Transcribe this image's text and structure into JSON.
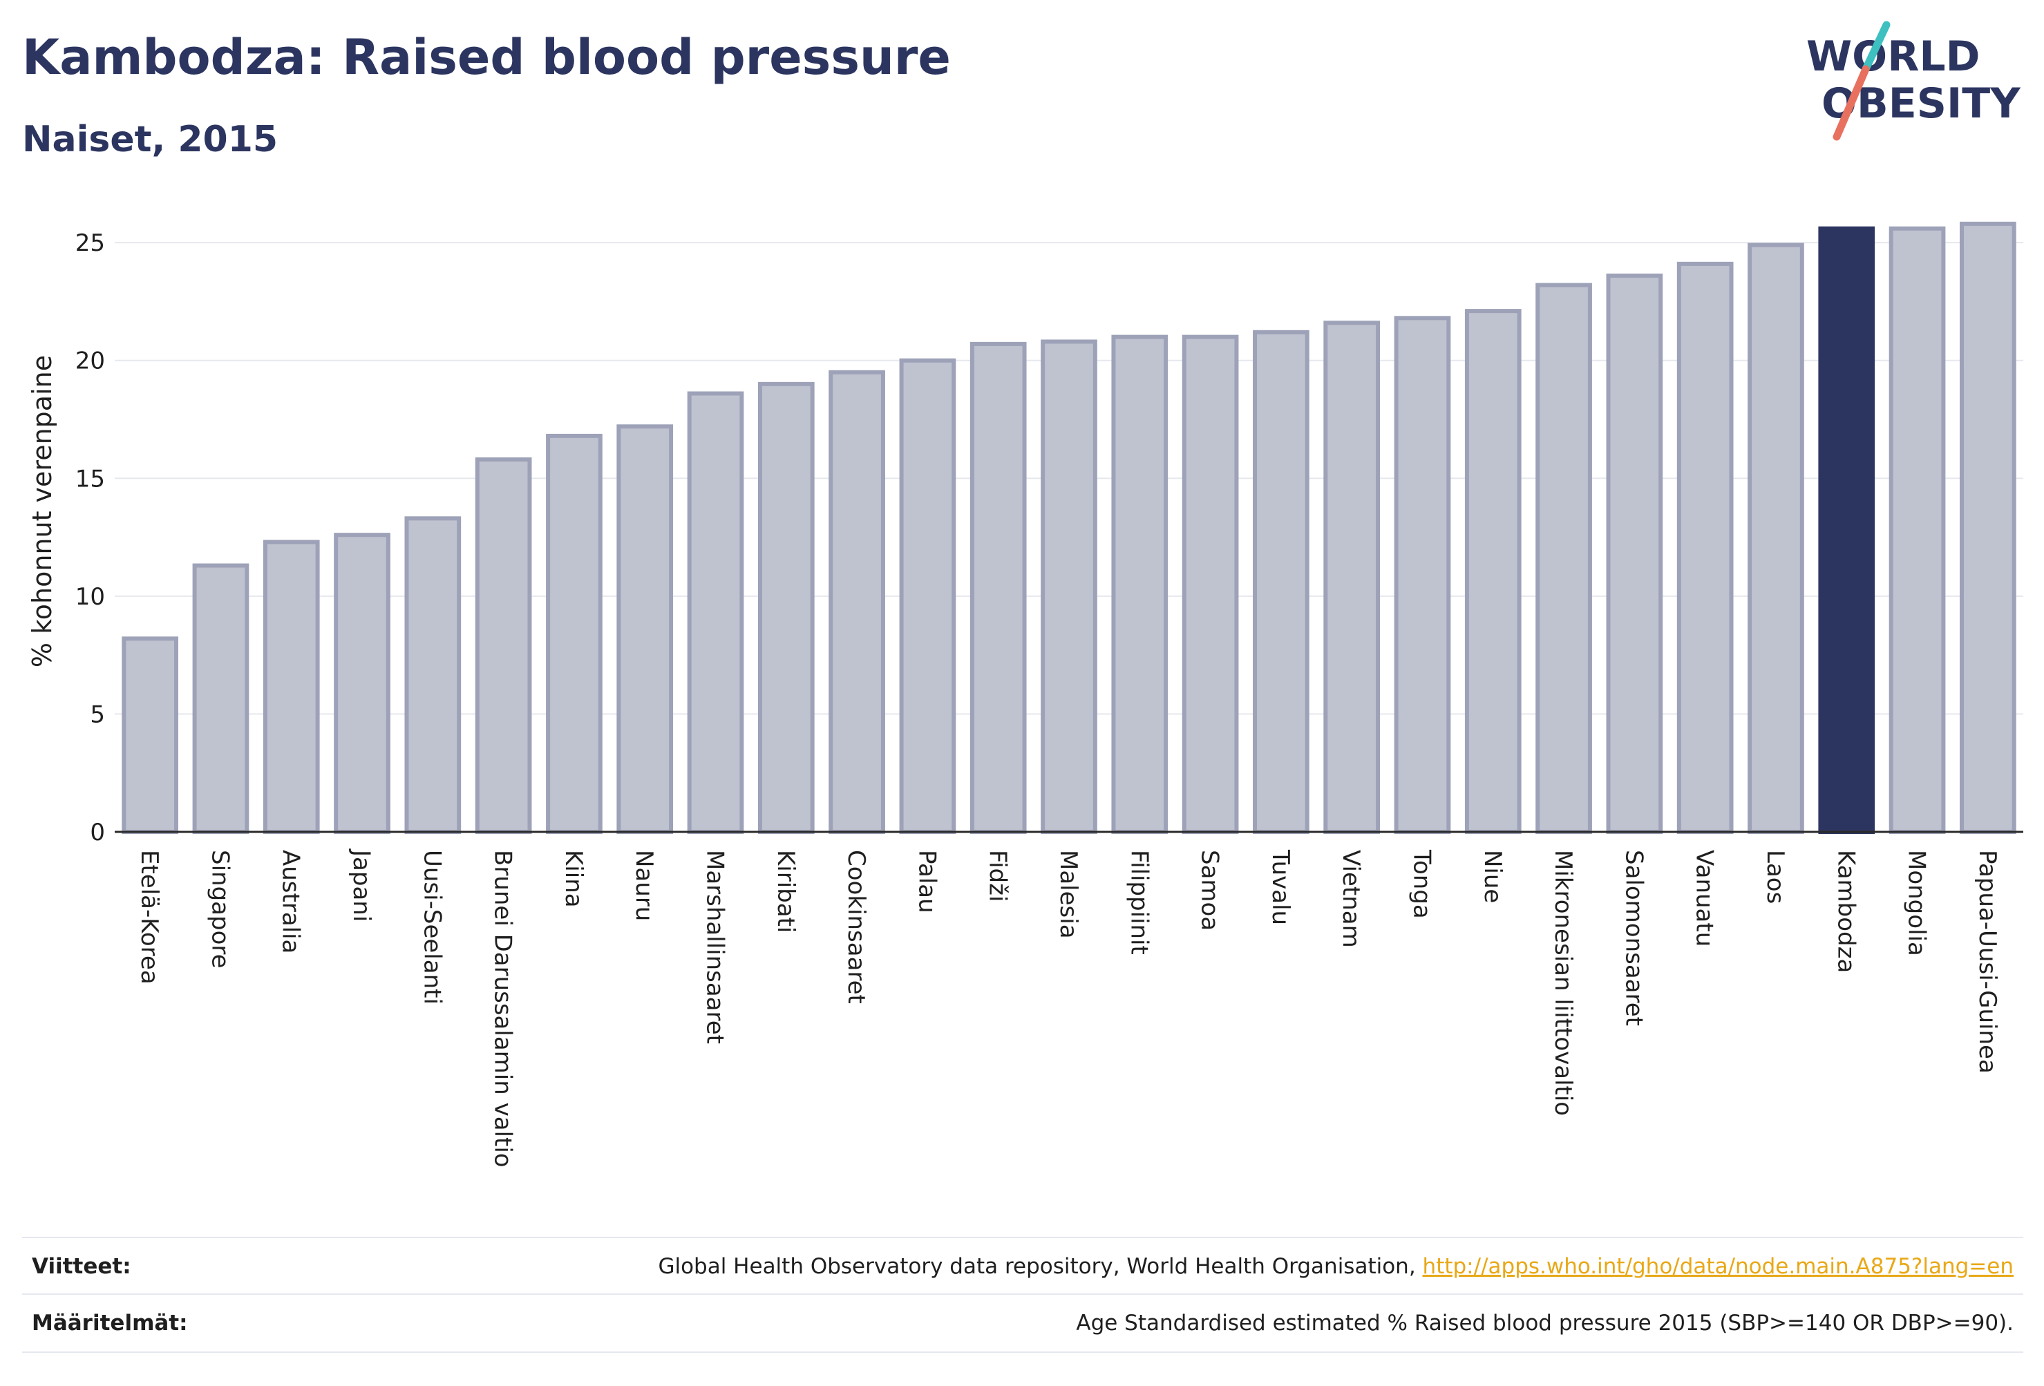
{
  "title": "Kambodza: Raised blood pressure",
  "subtitle": "Naiset, 2015",
  "logo": {
    "line1": "WORLD",
    "line2": "OBESITY"
  },
  "colors": {
    "bar_fill": "#bfc2cf",
    "bar_stroke": "#9ea2b8",
    "highlight": "#2c3560",
    "grid": "#e6e8ee",
    "logo_teal": "#3ec0c0",
    "logo_coral": "#e8705e",
    "link": "#e8a817"
  },
  "chart_data": {
    "type": "bar",
    "ylabel": "% kohonnut verenpaine",
    "ylim": [
      0,
      26.5
    ],
    "yticks": [
      0,
      5,
      10,
      15,
      20,
      25
    ],
    "grid": true,
    "highlight": "Kambodza",
    "categories": [
      "Etelä-Korea",
      "Singapore",
      "Australia",
      "Japani",
      "Uusi-Seelanti",
      "Brunei Darussalamin valtio",
      "Kiina",
      "Nauru",
      "Marshallinsaaret",
      "Kiribati",
      "Cookinsaaret",
      "Palau",
      "Fidži",
      "Malesia",
      "Filippiinit",
      "Samoa",
      "Tuvalu",
      "Vietnam",
      "Tonga",
      "Niue",
      "Mikronesian liittovaltio",
      "Salomonsaaret",
      "Vanuatu",
      "Laos",
      "Kambodza",
      "Mongolia",
      "Papua-Uusi-Guinea"
    ],
    "values": [
      8.2,
      11.3,
      12.3,
      12.6,
      13.3,
      15.8,
      16.8,
      17.2,
      18.6,
      19.0,
      19.5,
      20.0,
      20.7,
      20.8,
      21.0,
      21.0,
      21.2,
      21.6,
      21.8,
      22.1,
      23.2,
      23.6,
      24.1,
      24.9,
      25.6,
      25.6,
      25.8
    ]
  },
  "footer": {
    "sources_label": "Viitteet:",
    "sources_text": "Global Health Observatory data repository, World Health Organisation, ",
    "sources_link": "http://apps.who.int/gho/data/node.main.A875?lang=en",
    "definitions_label": "Määritelmät:",
    "definitions_text": "Age Standardised estimated % Raised blood pressure 2015 (SBP>=140 OR DBP>=90)."
  }
}
